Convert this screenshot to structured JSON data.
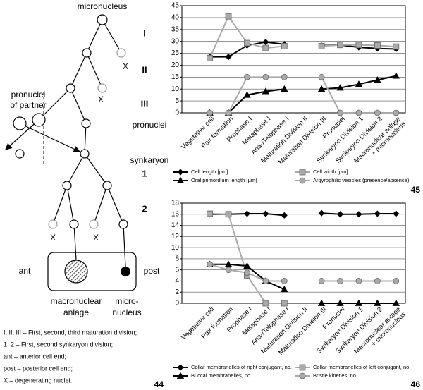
{
  "diagram": {
    "figure_number": "44",
    "top_label": "micronucleus",
    "stages": [
      "I",
      "II",
      "III"
    ],
    "pronuclei_of_partner": [
      "pronuclei",
      "of partner"
    ],
    "pronuclei": "pronuclei",
    "synkaryon": "synkaryon",
    "divisions": [
      "1",
      "2"
    ],
    "degenerating_mark": "X",
    "ant": "ant",
    "post": "post",
    "macronuclear_anlage": [
      "macronuclear",
      "anlage"
    ],
    "micronucleus_label": [
      "micro-",
      "nucleus"
    ],
    "notes": [
      "I, II, III – First, second, third maturation division;",
      "1, 2 – First, second synkaryon division;",
      "ant – anterior cell end;",
      "post – posterior cell end;",
      "X – degenerating nuclei."
    ]
  },
  "chart_data": [
    {
      "type": "line",
      "figure_number": "45",
      "categories": [
        "Vegetative cell",
        "Pair formation",
        "Prophase I",
        "Metaphase I",
        "Ana-/Telophase I",
        "Maturation Division II",
        "Maturation Division III",
        "Pronuclei",
        "Synkaryon Division 1",
        "Synkaryon Division 2",
        "Macronuclear anlage\n+ micronucleus"
      ],
      "ylim": [
        0,
        45
      ],
      "yticks": [
        0,
        5,
        10,
        15,
        20,
        25,
        30,
        35,
        40,
        45
      ],
      "grid": true,
      "series": [
        {
          "name": "Cell length [µm]",
          "color": "#000000",
          "marker": "diamond",
          "values": [
            23.5,
            23.5,
            28.3,
            29.7,
            28.8,
            null,
            28.2,
            28.5,
            27.5,
            27,
            26.8
          ]
        },
        {
          "name": "Cell width [µm]",
          "color": "#aaaaaa",
          "marker": "square",
          "values": [
            23,
            40.5,
            29.3,
            27.2,
            28,
            null,
            28,
            28.5,
            28.5,
            28.3,
            27.8
          ]
        },
        {
          "name": "Oral primordium length [µm]",
          "color": "#000000",
          "marker": "triangle",
          "values": [
            0,
            0,
            7.5,
            9,
            10,
            null,
            10,
            10.5,
            12,
            13.8,
            15.5
          ]
        },
        {
          "name": "Argyrophilic vesicles (presence/absence)",
          "color": "#aaaaaa",
          "marker": "circle",
          "values": [
            0,
            0,
            15,
            15,
            15,
            null,
            15,
            0,
            0,
            0,
            0
          ]
        }
      ]
    },
    {
      "type": "line",
      "figure_number": "46",
      "categories": [
        "Vegetative cell",
        "Pair formation",
        "Prophase I",
        "Metaphase I",
        "Ana-/Telophase I",
        "Maturation Division II",
        "Maturation Division III",
        "Pronuclei",
        "Synkaryon Division 1",
        "Synkaryon Division 2",
        "Macronuclear anlage\n+ micronucleus"
      ],
      "ylim": [
        0,
        18
      ],
      "yticks": [
        0,
        2,
        4,
        6,
        8,
        10,
        12,
        14,
        16,
        18
      ],
      "grid": true,
      "series": [
        {
          "name": "Collar membranelles of right conjugant, no.",
          "color": "#000000",
          "marker": "diamond",
          "values": [
            16,
            16,
            16.1,
            16.1,
            15.8,
            null,
            16.2,
            16,
            16,
            16.1,
            16.1
          ]
        },
        {
          "name": "Collar membranelles of left conjugant, no.",
          "color": "#aaaaaa",
          "marker": "square",
          "values": [
            16.1,
            16,
            5,
            0,
            0,
            null,
            null,
            null,
            null,
            null,
            null
          ]
        },
        {
          "name": "Buccal membranelles, no.",
          "color": "#000000",
          "marker": "triangle",
          "values": [
            7,
            7,
            6.7,
            4,
            2.5,
            null,
            0,
            0,
            0,
            0,
            0
          ]
        },
        {
          "name": "Bristle kineties, no.",
          "color": "#aaaaaa",
          "marker": "circle",
          "values": [
            7,
            6,
            5.5,
            4,
            4,
            null,
            4,
            4,
            4,
            4,
            4
          ]
        }
      ]
    }
  ]
}
